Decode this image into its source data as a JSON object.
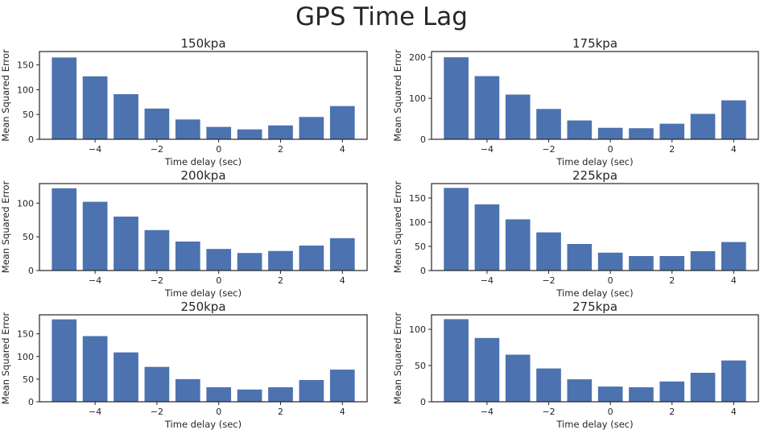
{
  "suptitle": "GPS Time Lag",
  "chart_data": [
    {
      "type": "bar",
      "title": "150kpa",
      "xlabel": "Time delay (sec)",
      "ylabel": "Mean Squared Error",
      "x": [
        -5,
        -4,
        -3,
        -2,
        -1,
        0,
        1,
        2,
        3,
        4
      ],
      "values": [
        165,
        127,
        91,
        62,
        40,
        25,
        20,
        28,
        45,
        67
      ],
      "xlim": [
        -5.8,
        4.8
      ],
      "ylim": [
        0,
        177
      ],
      "xticks": [
        -4,
        -2,
        0,
        2,
        4
      ],
      "yticks": [
        0,
        50,
        100,
        150
      ],
      "grid": false
    },
    {
      "type": "bar",
      "title": "175kpa",
      "xlabel": "Time delay (sec)",
      "ylabel": "Mean Squared Error",
      "x": [
        -5,
        -4,
        -3,
        -2,
        -1,
        0,
        1,
        2,
        3,
        4
      ],
      "values": [
        200,
        154,
        109,
        74,
        46,
        28,
        27,
        38,
        62,
        95
      ],
      "xlim": [
        -5.8,
        4.8
      ],
      "ylim": [
        0,
        214
      ],
      "xticks": [
        -4,
        -2,
        0,
        2,
        4
      ],
      "yticks": [
        0,
        100,
        200
      ],
      "grid": false
    },
    {
      "type": "bar",
      "title": "200kpa",
      "xlabel": "Time delay (sec)",
      "ylabel": "Mean Squared Error",
      "x": [
        -5,
        -4,
        -3,
        -2,
        -1,
        0,
        1,
        2,
        3,
        4
      ],
      "values": [
        122,
        102,
        80,
        60,
        43,
        32,
        26,
        29,
        37,
        48
      ],
      "xlim": [
        -5.8,
        4.8
      ],
      "ylim": [
        0,
        129
      ],
      "xticks": [
        -4,
        -2,
        0,
        2,
        4
      ],
      "yticks": [
        0,
        50,
        100
      ],
      "grid": false
    },
    {
      "type": "bar",
      "title": "225kpa",
      "xlabel": "Time delay (sec)",
      "ylabel": "Mean Squared Error",
      "x": [
        -5,
        -4,
        -3,
        -2,
        -1,
        0,
        1,
        2,
        3,
        4
      ],
      "values": [
        171,
        137,
        106,
        79,
        55,
        37,
        30,
        30,
        40,
        59
      ],
      "xlim": [
        -5.8,
        4.8
      ],
      "ylim": [
        0,
        180
      ],
      "xticks": [
        -4,
        -2,
        0,
        2,
        4
      ],
      "yticks": [
        0,
        50,
        100,
        150
      ],
      "grid": false
    },
    {
      "type": "bar",
      "title": "250kpa",
      "xlabel": "Time delay (sec)",
      "ylabel": "Mean Squared Error",
      "x": [
        -5,
        -4,
        -3,
        -2,
        -1,
        0,
        1,
        2,
        3,
        4
      ],
      "values": [
        182,
        145,
        109,
        77,
        50,
        32,
        27,
        32,
        48,
        71
      ],
      "xlim": [
        -5.8,
        4.8
      ],
      "ylim": [
        0,
        192
      ],
      "xticks": [
        -4,
        -2,
        0,
        2,
        4
      ],
      "yticks": [
        0,
        50,
        100,
        150
      ],
      "grid": false
    },
    {
      "type": "bar",
      "title": "275kpa",
      "xlabel": "Time delay (sec)",
      "ylabel": "Mean Squared Error",
      "x": [
        -5,
        -4,
        -3,
        -2,
        -1,
        0,
        1,
        2,
        3,
        4
      ],
      "values": [
        114,
        88,
        65,
        46,
        31,
        21,
        20,
        28,
        40,
        57
      ],
      "xlim": [
        -5.8,
        4.8
      ],
      "ylim": [
        0,
        120
      ],
      "xticks": [
        -4,
        -2,
        0,
        2,
        4
      ],
      "yticks": [
        0,
        50,
        100
      ],
      "grid": false
    }
  ],
  "colors": {
    "bar": "#4c72b0",
    "axis": "#262626",
    "background": "#ffffff"
  }
}
